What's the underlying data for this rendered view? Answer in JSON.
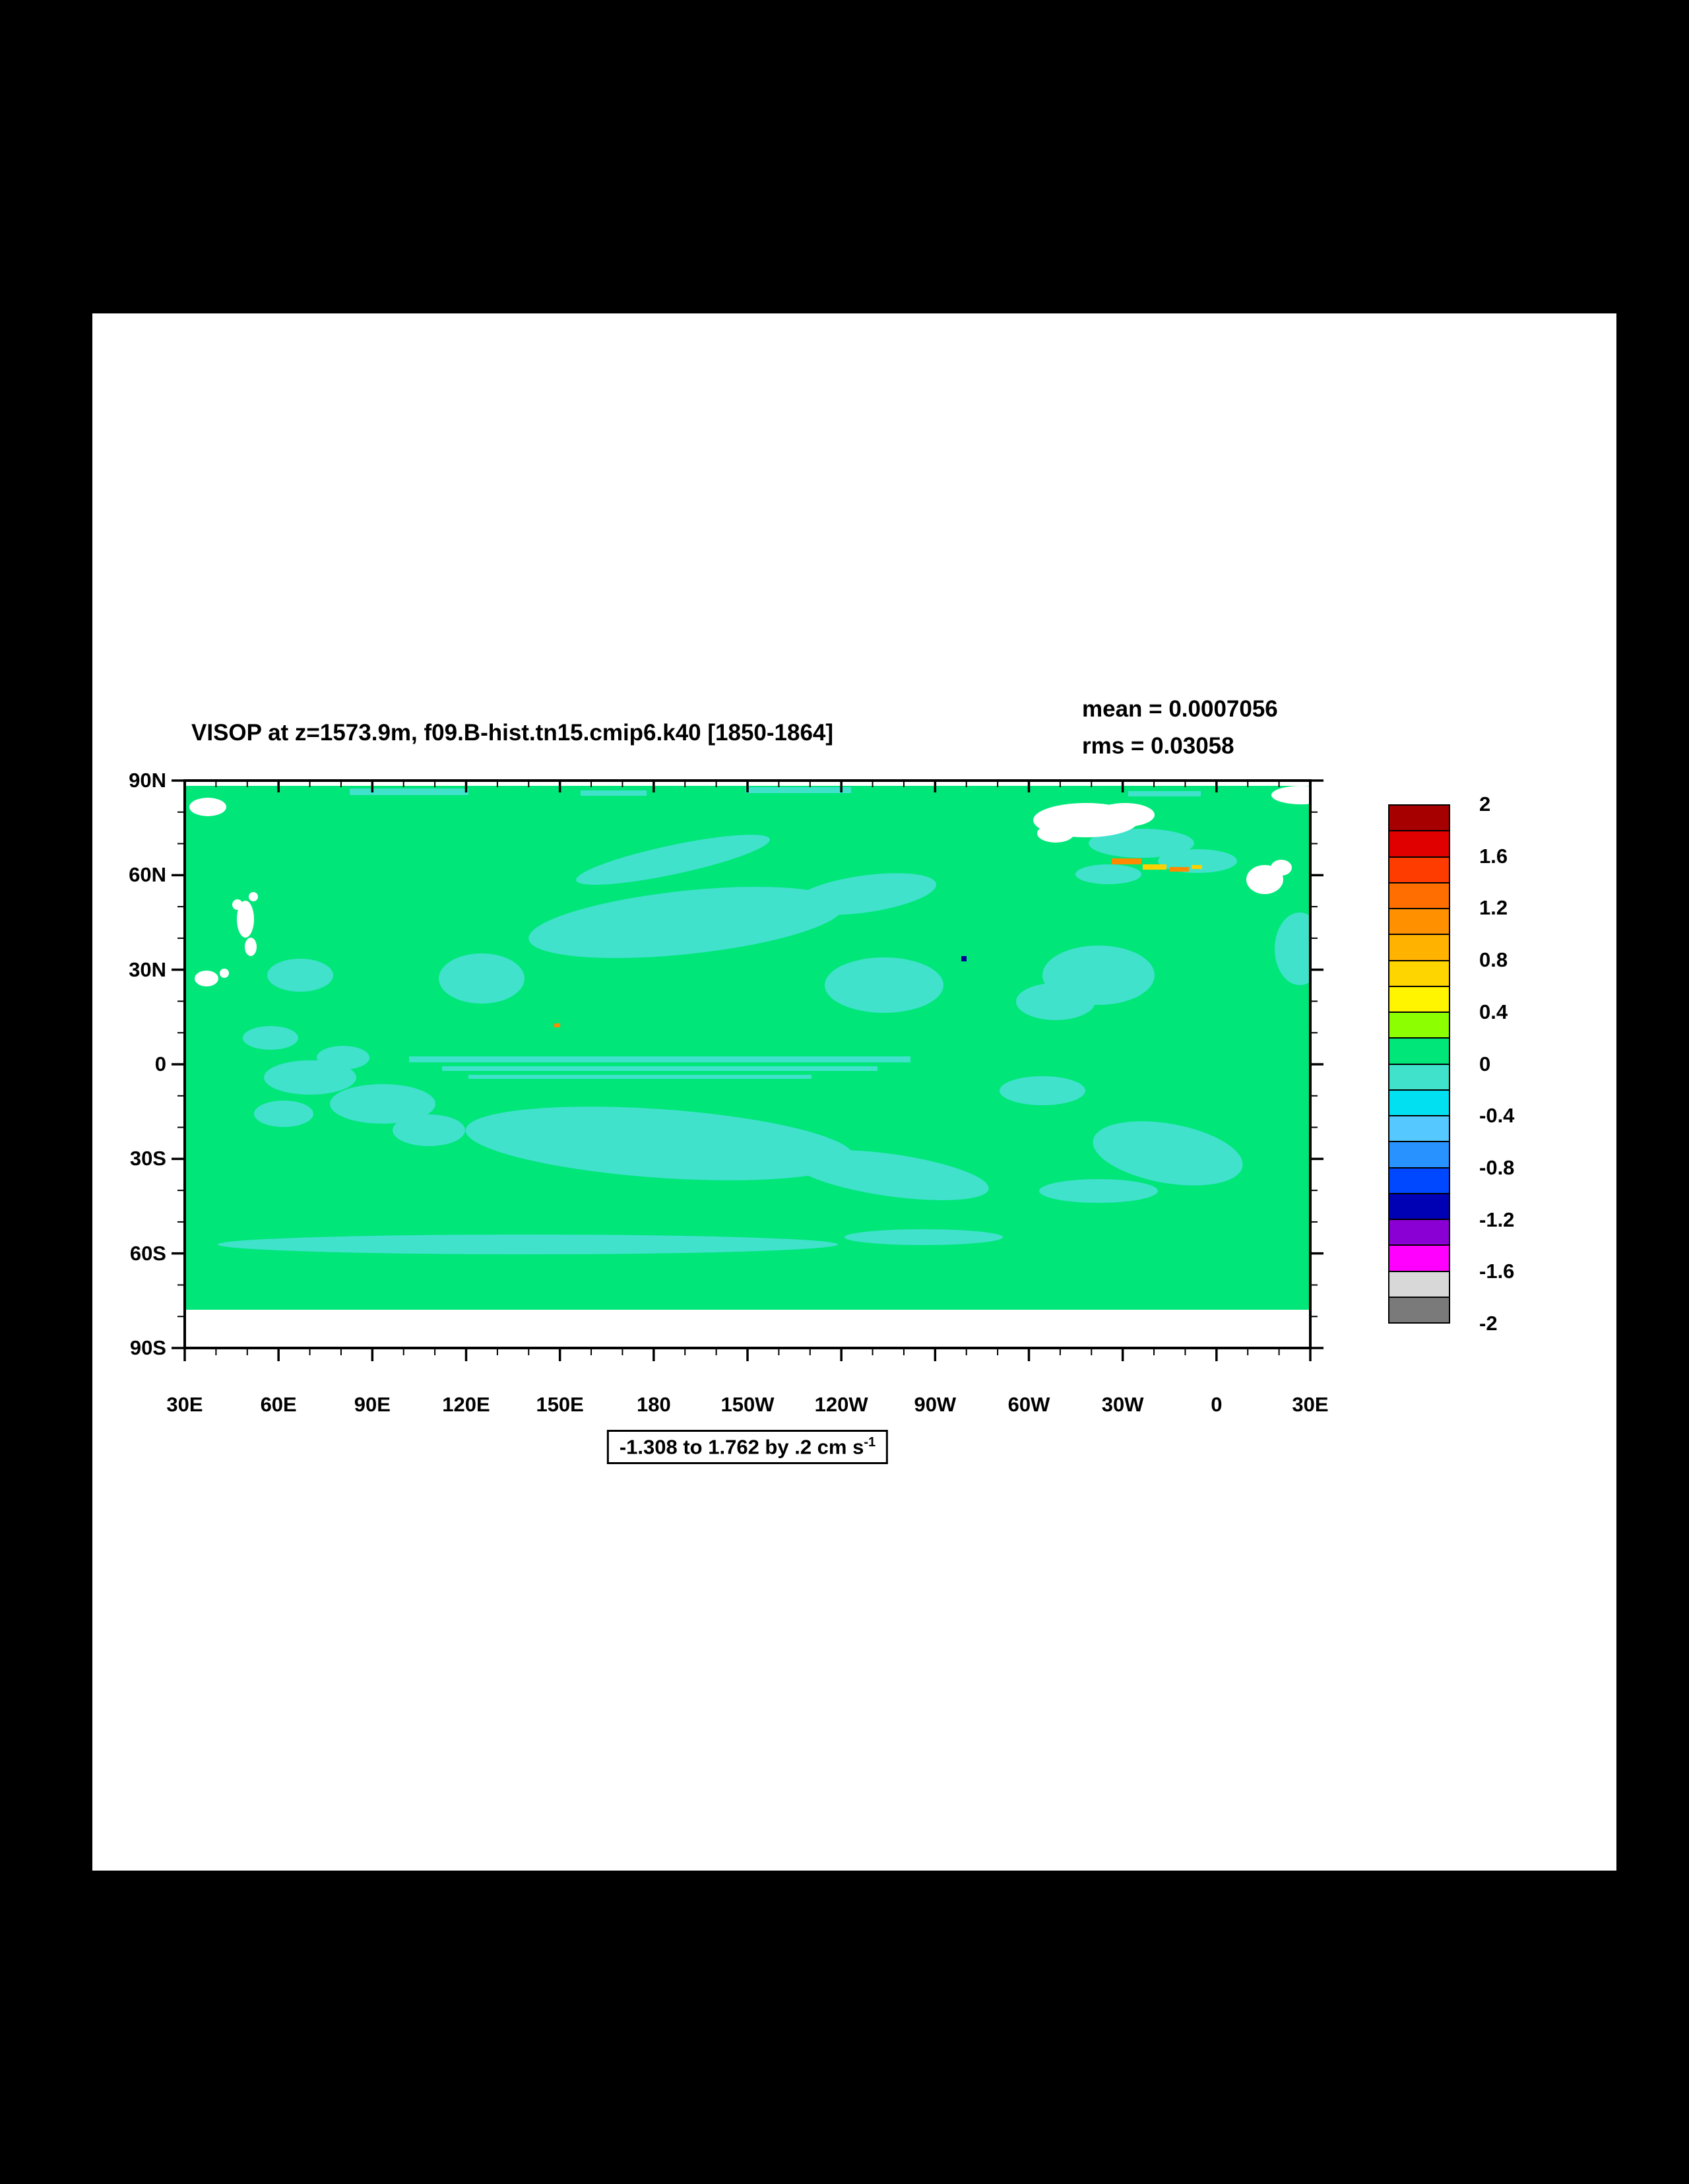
{
  "page": {
    "background": "#000000",
    "canvas_background": "#ffffff"
  },
  "title": "VISOP at z=1573.9m, f09.B-hist.tn15.cmip6.k40 [1850-1864]",
  "stats": {
    "mean": "mean = 0.0007056",
    "rms": "rms = 0.03058"
  },
  "range_label": {
    "text": "-1.308 to 1.762 by .2 cm s",
    "exponent": "-1"
  },
  "axes": {
    "x_ticks": [
      "30E",
      "60E",
      "90E",
      "120E",
      "150E",
      "180",
      "150W",
      "120W",
      "90W",
      "60W",
      "30W",
      "0",
      "30E"
    ],
    "y_ticks": [
      "90N",
      "60N",
      "30N",
      "0",
      "30S",
      "60S",
      "90S"
    ]
  },
  "colorbar": {
    "labels": [
      "2",
      "1.6",
      "1.2",
      "0.8",
      "0.4",
      "0",
      "-0.4",
      "-0.8",
      "-1.2",
      "-1.6",
      "-2"
    ],
    "colors": [
      "#A60000",
      "#E00000",
      "#FF3C00",
      "#FF6E00",
      "#FF9100",
      "#FFB300",
      "#FFD500",
      "#FFF500",
      "#8CFF00",
      "#00E679",
      "#40E2CC",
      "#00E0F0",
      "#55C8FF",
      "#2892FF",
      "#0048FF",
      "#0000B4",
      "#8A00D4",
      "#FF00FF",
      "#D8D8D8",
      "#7A7A7A"
    ]
  },
  "map": {
    "colors": {
      "field": "#00E679",
      "negative_patch": "#40E2CC",
      "land": "#FFFFFF",
      "speck_orange": "#FF8A00",
      "speck_yellow": "#FFD000",
      "speck_navy": "#000099"
    }
  },
  "chart_data": {
    "type": "heatmap",
    "subtype": "global-lat-lon-filled-contour-map",
    "title": "VISOP at z=1573.9m, f09.B-hist.tn15.cmip6.k40 [1850-1864]",
    "variable": "VISOP",
    "depth": "1573.9m",
    "case": "f09.B-hist.tn15.cmip6.k40",
    "period": "1850-1864",
    "stats": {
      "mean": 0.0007056,
      "rms": 0.03058
    },
    "field_range": {
      "min": -1.308,
      "max": 1.762,
      "contour_interval": 0.2,
      "units": "cm s^-1"
    },
    "x_axis": {
      "label": "longitude",
      "tick_labels": [
        "30E",
        "60E",
        "90E",
        "120E",
        "150E",
        "180",
        "150W",
        "120W",
        "90W",
        "60W",
        "30W",
        "0",
        "30E"
      ],
      "span_degrees": 360
    },
    "y_axis": {
      "label": "latitude",
      "tick_labels": [
        "90N",
        "60N",
        "30N",
        "0",
        "30S",
        "60S",
        "90S"
      ],
      "span_degrees": 180
    },
    "colorbar_bin_edges_top_to_bottom": [
      2.0,
      1.8,
      1.6,
      1.4,
      1.2,
      1.0,
      0.8,
      0.6,
      0.4,
      0.2,
      0.0,
      -0.2,
      -0.4,
      -0.6,
      -0.8,
      -1.0,
      -1.2,
      -1.4,
      -1.6,
      -1.8,
      -2.0
    ],
    "colorbar_labelled_levels": [
      2,
      1.6,
      1.2,
      0.8,
      0.4,
      0,
      -0.4,
      -0.8,
      -1.2,
      -1.6,
      -2
    ],
    "dominant_field": "Field is near zero almost everywhere: mostly in the 0 to 0.2 bin (green) with widespread patches in the -0.2 to 0 bin (turquoise). Small positive anomalies (orange/yellow bins) appear near 60N in the subpolar North Atlantic. White areas are land / missing data; no data south of about 78S.",
    "negative_patch_regions": [
      {
        "region": "Northwest/central North Pacific",
        "lat": "32N-56N",
        "lon": "140E-160W"
      },
      {
        "region": "Bering Sea / NW Pacific streak",
        "lat": "55N-62N",
        "lon": "165E-175W"
      },
      {
        "region": "Northeast Pacific",
        "lat": "15N-30N",
        "lon": "155W-125W"
      },
      {
        "region": "Equatorial Pacific streaks",
        "lat": "5S-5N",
        "lon": "150E-110W"
      },
      {
        "region": "South Pacific",
        "lat": "15S-37S",
        "lon": "155E-105W"
      },
      {
        "region": "Southern Ocean band",
        "lat": "52S-62S",
        "lon": "40E-180"
      },
      {
        "region": "Indian Ocean mottling",
        "lat": "5S-30S",
        "lon": "45E-115E"
      },
      {
        "region": "North Atlantic subtropics",
        "lat": "20N-37N",
        "lon": "75W-40W"
      },
      {
        "region": "Subpolar North Atlantic",
        "lat": "55N-68N",
        "lon": "45W-10W"
      },
      {
        "region": "South Atlantic",
        "lat": "28S-45S",
        "lon": "30W-10E"
      }
    ],
    "positive_specks": [
      {
        "region": "South/southeast of Greenland (Irminger Sea)",
        "lat": "60N-64N",
        "lon": "38W-18W",
        "value_bin": "0.4 to 1.0"
      }
    ],
    "land_missing_regions": [
      "Greenland",
      "Scandinavia",
      "Caspian Sea area",
      "Persian Gulf area",
      "Antarctic margin south of ~78S"
    ]
  }
}
